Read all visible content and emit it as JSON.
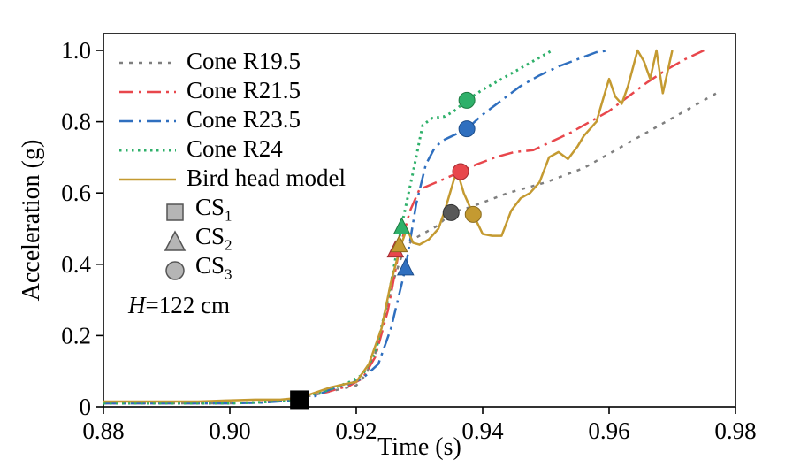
{
  "chart_data": {
    "type": "line",
    "title": "",
    "xlabel": "Time (s)",
    "ylabel": "Acceleration (g)",
    "xlim": [
      0.88,
      0.98
    ],
    "ylim": [
      0,
      1.0
    ],
    "xticks": [
      0.88,
      0.9,
      0.92,
      0.94,
      0.96,
      0.98
    ],
    "xtick_labels": [
      "0.88",
      "0.90",
      "0.92",
      "0.94",
      "0.96",
      "0.98"
    ],
    "yticks": [
      0,
      0.2,
      0.4,
      0.6,
      0.8,
      1.0
    ],
    "ytick_labels": [
      "0",
      "0.2",
      "0.4",
      "0.6",
      "0.8",
      "1.0"
    ],
    "grid": false,
    "legend_position": "upper-left",
    "annotation": {
      "prefix": "H",
      "text": "=122 cm"
    },
    "series": [
      {
        "name": "Cone R19.5",
        "color": "#7f7f7f",
        "dash": "4 7",
        "width": 2.5,
        "x": [
          0.88,
          0.885,
          0.89,
          0.895,
          0.9,
          0.905,
          0.91,
          0.9125,
          0.915,
          0.9175,
          0.92,
          0.9215,
          0.923,
          0.9245,
          0.926,
          0.9275,
          0.929,
          0.931,
          0.933,
          0.935,
          0.938,
          0.941,
          0.944,
          0.947,
          0.95,
          0.953,
          0.956,
          0.959,
          0.962,
          0.965,
          0.968,
          0.971,
          0.974,
          0.977
        ],
        "y": [
          0.01,
          0.01,
          0.01,
          0.01,
          0.01,
          0.012,
          0.02,
          0.03,
          0.04,
          0.05,
          0.06,
          0.09,
          0.15,
          0.25,
          0.36,
          0.44,
          0.47,
          0.49,
          0.51,
          0.545,
          0.56,
          0.58,
          0.6,
          0.615,
          0.63,
          0.65,
          0.67,
          0.7,
          0.73,
          0.76,
          0.79,
          0.82,
          0.85,
          0.88
        ]
      },
      {
        "name": "Cone R21.5",
        "color": "#e8474c",
        "dash": "16 6 3 6",
        "width": 2.5,
        "x": [
          0.88,
          0.885,
          0.89,
          0.895,
          0.9,
          0.905,
          0.91,
          0.913,
          0.916,
          0.919,
          0.921,
          0.923,
          0.925,
          0.9268,
          0.9285,
          0.93,
          0.932,
          0.934,
          0.9365,
          0.939,
          0.942,
          0.945,
          0.948,
          0.951,
          0.954,
          0.957,
          0.96,
          0.963,
          0.966,
          0.969,
          0.972,
          0.975
        ],
        "y": [
          0.01,
          0.01,
          0.01,
          0.01,
          0.01,
          0.013,
          0.02,
          0.03,
          0.045,
          0.06,
          0.08,
          0.14,
          0.27,
          0.44,
          0.55,
          0.61,
          0.625,
          0.64,
          0.66,
          0.68,
          0.7,
          0.715,
          0.72,
          0.745,
          0.77,
          0.8,
          0.83,
          0.87,
          0.91,
          0.945,
          0.975,
          1.0
        ]
      },
      {
        "name": "Cone R23.5",
        "color": "#2f6fbf",
        "dash": "16 6 3 6",
        "width": 2.5,
        "x": [
          0.88,
          0.885,
          0.89,
          0.895,
          0.9,
          0.905,
          0.91,
          0.9135,
          0.916,
          0.919,
          0.921,
          0.9235,
          0.9255,
          0.9278,
          0.9295,
          0.931,
          0.9325,
          0.934,
          0.9375,
          0.94,
          0.943,
          0.946,
          0.949,
          0.952,
          0.955,
          0.958,
          0.96
        ],
        "y": [
          0.01,
          0.01,
          0.01,
          0.01,
          0.01,
          0.012,
          0.018,
          0.03,
          0.05,
          0.065,
          0.08,
          0.12,
          0.22,
          0.39,
          0.57,
          0.68,
          0.73,
          0.75,
          0.78,
          0.82,
          0.86,
          0.9,
          0.93,
          0.955,
          0.975,
          0.995,
          1.0
        ]
      },
      {
        "name": "Cone R24",
        "color": "#2fb06a",
        "dash": "2.5 4.5",
        "width": 3,
        "x": [
          0.88,
          0.885,
          0.89,
          0.895,
          0.9,
          0.905,
          0.91,
          0.913,
          0.916,
          0.919,
          0.921,
          0.923,
          0.925,
          0.9272,
          0.929,
          0.9305,
          0.932,
          0.934,
          0.9355,
          0.9375,
          0.94,
          0.9425,
          0.945,
          0.9475,
          0.949,
          0.951
        ],
        "y": [
          0.01,
          0.01,
          0.01,
          0.01,
          0.01,
          0.013,
          0.02,
          0.035,
          0.05,
          0.07,
          0.09,
          0.15,
          0.3,
          0.51,
          0.66,
          0.79,
          0.81,
          0.815,
          0.83,
          0.86,
          0.89,
          0.915,
          0.94,
          0.965,
          0.98,
          1.0
        ]
      },
      {
        "name": "Bird head model",
        "color": "#c49a31",
        "dash": "",
        "width": 2.5,
        "x": [
          0.88,
          0.885,
          0.89,
          0.895,
          0.9,
          0.904,
          0.908,
          0.911,
          0.9135,
          0.916,
          0.9185,
          0.92,
          0.922,
          0.924,
          0.9255,
          0.927,
          0.928,
          0.929,
          0.93,
          0.9315,
          0.933,
          0.934,
          0.9355,
          0.936,
          0.937,
          0.9385,
          0.94,
          0.9415,
          0.943,
          0.9445,
          0.946,
          0.9475,
          0.949,
          0.9505,
          0.952,
          0.9535,
          0.955,
          0.956,
          0.957,
          0.958,
          0.959,
          0.96,
          0.961,
          0.962,
          0.963,
          0.9645,
          0.9655,
          0.9665,
          0.9675,
          0.9685,
          0.97
        ],
        "y": [
          0.015,
          0.015,
          0.015,
          0.015,
          0.018,
          0.02,
          0.02,
          0.025,
          0.04,
          0.055,
          0.065,
          0.07,
          0.12,
          0.22,
          0.35,
          0.45,
          0.5,
          0.46,
          0.455,
          0.47,
          0.5,
          0.55,
          0.64,
          0.66,
          0.6,
          0.54,
          0.485,
          0.48,
          0.48,
          0.55,
          0.585,
          0.6,
          0.63,
          0.7,
          0.715,
          0.695,
          0.73,
          0.76,
          0.78,
          0.8,
          0.86,
          0.92,
          0.87,
          0.85,
          0.9,
          1.0,
          0.97,
          0.92,
          1.0,
          0.88,
          1.0
        ]
      }
    ],
    "markers": [
      {
        "cs": "CS1",
        "shape": "square",
        "color": "#000000",
        "edge": "#000000",
        "x": 0.911,
        "y": 0.02,
        "size": 20
      },
      {
        "cs": "CS2",
        "shape": "triangle",
        "color": "#e8474c",
        "edge": "#a32d32",
        "x": 0.9262,
        "y": 0.44,
        "size": 16
      },
      {
        "cs": "CS2",
        "shape": "triangle",
        "color": "#c49a31",
        "edge": "#8a6b1d",
        "x": 0.9268,
        "y": 0.455,
        "size": 16
      },
      {
        "cs": "CS2",
        "shape": "triangle",
        "color": "#2fb06a",
        "edge": "#1d7a41",
        "x": 0.9272,
        "y": 0.505,
        "size": 16
      },
      {
        "cs": "CS2",
        "shape": "triangle",
        "color": "#2f6fbf",
        "edge": "#1d4d8a",
        "x": 0.9278,
        "y": 0.39,
        "size": 16
      },
      {
        "cs": "CS3",
        "shape": "circle",
        "color": "#595959",
        "edge": "#333333",
        "x": 0.935,
        "y": 0.545,
        "size": 16
      },
      {
        "cs": "CS3",
        "shape": "circle",
        "color": "#c49a31",
        "edge": "#8a6b1d",
        "x": 0.9385,
        "y": 0.54,
        "size": 16
      },
      {
        "cs": "CS3",
        "shape": "circle",
        "color": "#e8474c",
        "edge": "#a32d32",
        "x": 0.9365,
        "y": 0.66,
        "size": 16
      },
      {
        "cs": "CS3",
        "shape": "circle",
        "color": "#2f6fbf",
        "edge": "#1d4d8a",
        "x": 0.9375,
        "y": 0.78,
        "size": 16
      },
      {
        "cs": "CS3",
        "shape": "circle",
        "color": "#2fb06a",
        "edge": "#1d7a41",
        "x": 0.9375,
        "y": 0.86,
        "size": 16
      }
    ],
    "marker_legend": [
      {
        "label": "CS",
        "sub": "1",
        "shape": "square"
      },
      {
        "label": "CS",
        "sub": "2",
        "shape": "triangle"
      },
      {
        "label": "CS",
        "sub": "3",
        "shape": "circle"
      }
    ],
    "marker_legend_fill": "#b5b5b5",
    "marker_legend_edge": "#555555"
  }
}
